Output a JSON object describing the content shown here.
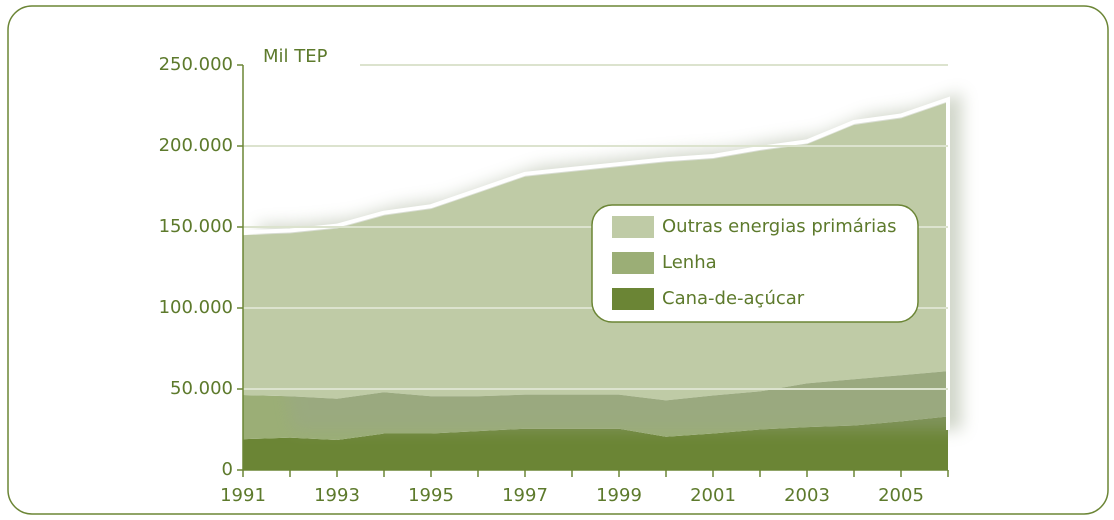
{
  "chart_data": {
    "type": "stacked_area",
    "y_label": "Mil TEP",
    "x": [
      1991,
      1992,
      1993,
      1994,
      1995,
      1996,
      1997,
      1998,
      1999,
      2000,
      2001,
      2002,
      2003,
      2004,
      2005,
      2006
    ],
    "xlim": [
      1991,
      2006
    ],
    "xticks": [
      1991,
      1993,
      1995,
      1997,
      1999,
      2001,
      2003,
      2005
    ],
    "ylim": [
      0,
      250000
    ],
    "yticks": [
      0,
      {
        "value": 50000,
        "label": "50.000"
      },
      {
        "value": 100000,
        "label": "100.000"
      },
      {
        "value": 150000,
        "label": "150.000"
      },
      {
        "value": 200000,
        "label": "200.000"
      },
      {
        "value": 250000,
        "label": "250.000"
      }
    ],
    "grid": true,
    "series": [
      {
        "name": "Cana-de-açúcar",
        "color": "#6b8535",
        "values": [
          19000,
          20000,
          18500,
          22500,
          22500,
          24000,
          25500,
          25500,
          25500,
          20500,
          22500,
          25000,
          26500,
          27500,
          30000,
          33000
        ]
      },
      {
        "name": "Lenha",
        "color": "#9bae76",
        "values": [
          27300,
          25500,
          25500,
          25500,
          23000,
          21500,
          21000,
          21000,
          21000,
          22500,
          23500,
          23500,
          27000,
          28500,
          28500,
          28000
        ]
      },
      {
        "name": "Outras energias primárias",
        "color": "#bfcba6",
        "values": [
          98700,
          100500,
          105000,
          109000,
          115500,
          125500,
          134500,
          137500,
          140500,
          147000,
          146000,
          148500,
          147500,
          157000,
          158500,
          166000
        ]
      }
    ]
  }
}
